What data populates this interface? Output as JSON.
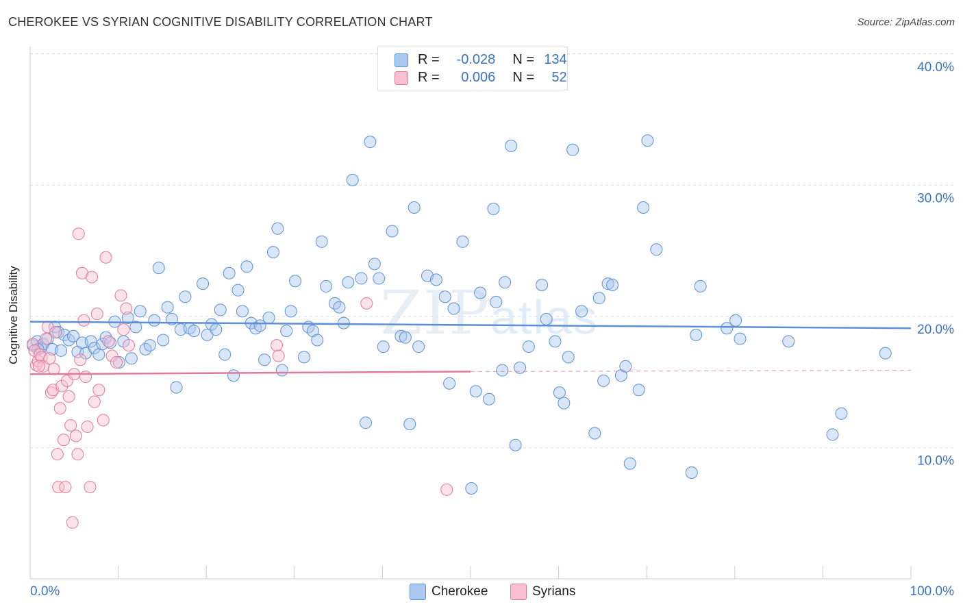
{
  "title": "CHEROKEE VS SYRIAN COGNITIVE DISABILITY CORRELATION CHART",
  "source": "Source: ZipAtlas.com",
  "watermark": {
    "zip": "ZIP",
    "atlas": "atlas"
  },
  "legend": {
    "rows": [
      {
        "name": "Cherokee",
        "r_label": "R =",
        "r_value": "-0.028",
        "n_label": "N =",
        "n_value": "134",
        "color": "#aac8f0",
        "stroke": "#5b8fd6"
      },
      {
        "name": "Syrians",
        "r_label": "R =",
        "r_value": "0.006",
        "n_label": "N =",
        "n_value": "52",
        "color": "#f8c0d0",
        "stroke": "#e07a9c"
      }
    ]
  },
  "bottom_legend": {
    "cherokee": "Cherokee",
    "syrians": "Syrians"
  },
  "chart_data": {
    "type": "scatter",
    "title": "CHEROKEE VS SYRIAN COGNITIVE DISABILITY CORRELATION CHART",
    "xlabel": "",
    "ylabel": "Cognitive Disability",
    "xlim": [
      0,
      100
    ],
    "ylim": [
      0,
      40
    ],
    "x_tick_labels": [
      "0.0%",
      "100.0%"
    ],
    "y_ticks": [
      10,
      20,
      30,
      40
    ],
    "y_tick_labels": [
      "10.0%",
      "20.0%",
      "30.0%",
      "40.0%"
    ],
    "grid": true,
    "series": [
      {
        "name": "Cherokee",
        "color": "#5b8fd6",
        "fill": "#aac8f0",
        "trend": {
          "x": [
            0,
            100
          ],
          "y": [
            19.6,
            19.1
          ],
          "style": "solid"
        },
        "points": [
          [
            0.3,
            17.8
          ],
          [
            0.8,
            18.1
          ],
          [
            1.2,
            17.6
          ],
          [
            1.5,
            17.9
          ],
          [
            2.0,
            18.3
          ],
          [
            2.5,
            17.5
          ],
          [
            2.8,
            19.2
          ],
          [
            3.2,
            18.8
          ],
          [
            3.5,
            17.4
          ],
          [
            3.9,
            18.6
          ],
          [
            4.4,
            18.2
          ],
          [
            4.9,
            18.5
          ],
          [
            5.4,
            17.3
          ],
          [
            5.9,
            18.0
          ],
          [
            6.3,
            17.2
          ],
          [
            6.9,
            18.1
          ],
          [
            7.3,
            17.6
          ],
          [
            7.8,
            17.1
          ],
          [
            8.2,
            17.9
          ],
          [
            8.6,
            18.4
          ],
          [
            9.1,
            18.0
          ],
          [
            9.6,
            19.6
          ],
          [
            10.1,
            16.5
          ],
          [
            10.6,
            18.1
          ],
          [
            11.1,
            19.9
          ],
          [
            11.5,
            16.8
          ],
          [
            12.0,
            19.2
          ],
          [
            12.5,
            20.4
          ],
          [
            13.1,
            17.5
          ],
          [
            13.6,
            17.8
          ],
          [
            14.1,
            19.7
          ],
          [
            14.6,
            23.7
          ],
          [
            15.1,
            18.2
          ],
          [
            15.6,
            20.7
          ],
          [
            16.1,
            19.8
          ],
          [
            16.6,
            14.6
          ],
          [
            17.1,
            19.0
          ],
          [
            17.6,
            21.5
          ],
          [
            18.1,
            19.1
          ],
          [
            18.6,
            18.9
          ],
          [
            19.6,
            22.5
          ],
          [
            20.1,
            18.6
          ],
          [
            20.6,
            19.4
          ],
          [
            21.1,
            19.0
          ],
          [
            21.6,
            20.5
          ],
          [
            22.1,
            17.1
          ],
          [
            22.6,
            23.3
          ],
          [
            23.1,
            15.5
          ],
          [
            23.6,
            22.0
          ],
          [
            24.1,
            20.4
          ],
          [
            24.6,
            23.8
          ],
          [
            25.1,
            19.5
          ],
          [
            25.6,
            19.1
          ],
          [
            26.1,
            19.3
          ],
          [
            26.6,
            16.7
          ],
          [
            27.1,
            19.9
          ],
          [
            27.6,
            24.9
          ],
          [
            28.1,
            26.7
          ],
          [
            28.6,
            15.9
          ],
          [
            29.1,
            18.9
          ],
          [
            29.6,
            20.4
          ],
          [
            30.1,
            22.7
          ],
          [
            31.1,
            16.9
          ],
          [
            31.6,
            19.2
          ],
          [
            32.1,
            18.9
          ],
          [
            32.6,
            18.2
          ],
          [
            33.1,
            25.7
          ],
          [
            33.6,
            22.3
          ],
          [
            34.6,
            21.0
          ],
          [
            35.1,
            20.7
          ],
          [
            35.6,
            19.5
          ],
          [
            36.1,
            22.6
          ],
          [
            36.6,
            30.4
          ],
          [
            37.6,
            22.9
          ],
          [
            38.1,
            11.9
          ],
          [
            38.6,
            33.3
          ],
          [
            39.1,
            24.0
          ],
          [
            39.6,
            22.9
          ],
          [
            40.1,
            17.7
          ],
          [
            41.1,
            26.5
          ],
          [
            42.1,
            18.5
          ],
          [
            42.6,
            18.4
          ],
          [
            43.1,
            11.8
          ],
          [
            43.6,
            28.3
          ],
          [
            44.1,
            17.7
          ],
          [
            45.1,
            23.1
          ],
          [
            46.1,
            22.8
          ],
          [
            47.1,
            21.5
          ],
          [
            47.6,
            14.9
          ],
          [
            48.1,
            20.6
          ],
          [
            49.1,
            25.7
          ],
          [
            50.1,
            6.9
          ],
          [
            50.6,
            14.3
          ],
          [
            51.1,
            21.8
          ],
          [
            52.1,
            13.7
          ],
          [
            52.6,
            28.2
          ],
          [
            52.9,
            21.1
          ],
          [
            53.6,
            15.9
          ],
          [
            53.9,
            22.6
          ],
          [
            54.6,
            33.0
          ],
          [
            55.1,
            10.2
          ],
          [
            55.6,
            16.1
          ],
          [
            56.6,
            17.7
          ],
          [
            58.1,
            22.4
          ],
          [
            58.6,
            19.8
          ],
          [
            59.6,
            18.1
          ],
          [
            60.1,
            14.2
          ],
          [
            60.6,
            13.4
          ],
          [
            61.1,
            16.9
          ],
          [
            61.6,
            32.7
          ],
          [
            62.6,
            20.4
          ],
          [
            64.1,
            11.1
          ],
          [
            64.6,
            21.4
          ],
          [
            65.1,
            15.1
          ],
          [
            65.6,
            22.5
          ],
          [
            66.1,
            22.4
          ],
          [
            67.1,
            15.5
          ],
          [
            67.6,
            16.2
          ],
          [
            68.1,
            8.8
          ],
          [
            69.1,
            14.4
          ],
          [
            69.6,
            28.3
          ],
          [
            70.1,
            33.4
          ],
          [
            71.1,
            25.1
          ],
          [
            75.1,
            8.1
          ],
          [
            75.6,
            18.6
          ],
          [
            76.1,
            22.3
          ],
          [
            79.1,
            19.1
          ],
          [
            80.1,
            19.7
          ],
          [
            80.6,
            18.3
          ],
          [
            86.1,
            18.1
          ],
          [
            91.1,
            11.0
          ],
          [
            92.1,
            12.6
          ],
          [
            97.1,
            17.2
          ],
          [
            0.9,
            17.5
          ]
        ]
      },
      {
        "name": "Syrians",
        "color": "#e07a9c",
        "fill": "#f8c0d0",
        "trend": {
          "x": [
            0,
            50
          ],
          "y": [
            15.6,
            15.8
          ],
          "dashed_extension": {
            "x": [
              50,
              100
            ],
            "y": [
              15.8,
              15.9
            ]
          }
        },
        "points": [
          [
            0.3,
            17.9
          ],
          [
            0.5,
            17.4
          ],
          [
            0.7,
            16.3
          ],
          [
            0.9,
            16.6
          ],
          [
            1.1,
            17.1
          ],
          [
            1.3,
            16.9
          ],
          [
            1.5,
            16.2
          ],
          [
            1.8,
            18.3
          ],
          [
            2.0,
            19.2
          ],
          [
            2.2,
            16.8
          ],
          [
            2.4,
            14.2
          ],
          [
            2.6,
            14.4
          ],
          [
            2.9,
            18.8
          ],
          [
            3.1,
            9.5
          ],
          [
            3.2,
            7.0
          ],
          [
            3.4,
            13.0
          ],
          [
            3.6,
            14.7
          ],
          [
            3.8,
            10.6
          ],
          [
            4.0,
            7.0
          ],
          [
            4.2,
            15.1
          ],
          [
            4.4,
            13.9
          ],
          [
            4.6,
            11.7
          ],
          [
            4.8,
            4.3
          ],
          [
            5.0,
            15.6
          ],
          [
            5.2,
            10.9
          ],
          [
            5.4,
            9.5
          ],
          [
            5.5,
            26.3
          ],
          [
            5.7,
            16.7
          ],
          [
            5.9,
            23.3
          ],
          [
            6.1,
            19.7
          ],
          [
            6.3,
            15.4
          ],
          [
            6.5,
            11.6
          ],
          [
            6.8,
            7.0
          ],
          [
            7.0,
            23.0
          ],
          [
            7.3,
            13.5
          ],
          [
            7.6,
            20.2
          ],
          [
            7.8,
            14.4
          ],
          [
            8.3,
            12.1
          ],
          [
            8.6,
            24.5
          ],
          [
            8.9,
            18.1
          ],
          [
            9.3,
            17.0
          ],
          [
            9.8,
            16.5
          ],
          [
            10.3,
            21.6
          ],
          [
            10.6,
            19.0
          ],
          [
            10.9,
            20.6
          ],
          [
            11.2,
            17.8
          ],
          [
            28.0,
            17.8
          ],
          [
            28.2,
            17.0
          ],
          [
            38.2,
            21.0
          ],
          [
            47.3,
            6.8
          ],
          [
            1.0,
            16.2
          ],
          [
            2.7,
            16.0
          ]
        ]
      }
    ]
  }
}
